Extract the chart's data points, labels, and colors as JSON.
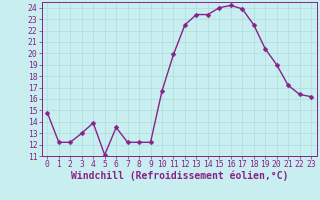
{
  "x": [
    0,
    1,
    2,
    3,
    4,
    5,
    6,
    7,
    8,
    9,
    10,
    11,
    12,
    13,
    14,
    15,
    16,
    17,
    18,
    19,
    20,
    21,
    22,
    23
  ],
  "y": [
    14.8,
    12.2,
    12.2,
    13.0,
    13.9,
    11.1,
    13.5,
    12.2,
    12.2,
    12.2,
    16.7,
    19.9,
    22.5,
    23.4,
    23.4,
    24.0,
    24.2,
    23.9,
    22.5,
    20.4,
    19.0,
    17.2,
    16.4,
    16.2
  ],
  "line_color": "#882288",
  "marker_color": "#882288",
  "bg_color": "#c8eef0",
  "grid_color": "#aadddd",
  "xlabel": "Windchill (Refroidissement éolien,°C)",
  "xlim": [
    -0.5,
    23.5
  ],
  "ylim": [
    11,
    24.5
  ],
  "yticks": [
    11,
    12,
    13,
    14,
    15,
    16,
    17,
    18,
    19,
    20,
    21,
    22,
    23,
    24
  ],
  "xticks": [
    0,
    1,
    2,
    3,
    4,
    5,
    6,
    7,
    8,
    9,
    10,
    11,
    12,
    13,
    14,
    15,
    16,
    17,
    18,
    19,
    20,
    21,
    22,
    23
  ],
  "tick_color": "#882288",
  "tick_fontsize": 5.8,
  "xlabel_fontsize": 7.0,
  "line_width": 1.0,
  "marker_size": 2.5
}
